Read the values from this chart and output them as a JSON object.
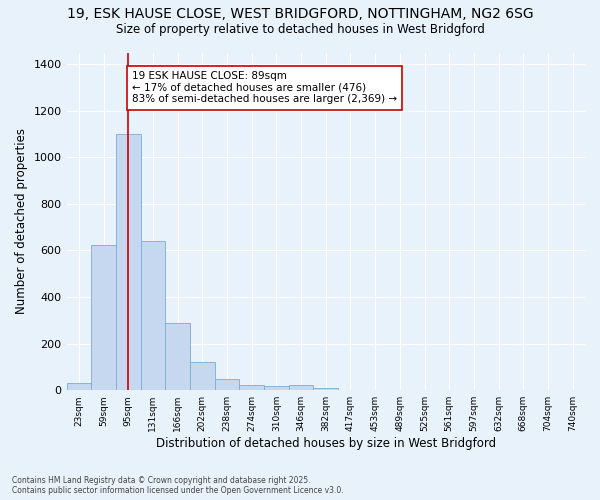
{
  "title_line1": "19, ESK HAUSE CLOSE, WEST BRIDGFORD, NOTTINGHAM, NG2 6SG",
  "title_line2": "Size of property relative to detached houses in West Bridgford",
  "xlabel": "Distribution of detached houses by size in West Bridgford",
  "ylabel": "Number of detached properties",
  "bar_color": "#c5d8ef",
  "bar_edge_color": "#7aadd4",
  "background_color": "#e8f2fb",
  "grid_color": "#ffffff",
  "categories": [
    "23sqm",
    "59sqm",
    "95sqm",
    "131sqm",
    "166sqm",
    "202sqm",
    "238sqm",
    "274sqm",
    "310sqm",
    "346sqm",
    "382sqm",
    "417sqm",
    "453sqm",
    "489sqm",
    "525sqm",
    "561sqm",
    "597sqm",
    "632sqm",
    "668sqm",
    "704sqm",
    "740sqm"
  ],
  "values": [
    30,
    625,
    1100,
    640,
    290,
    120,
    50,
    22,
    18,
    22,
    10,
    0,
    0,
    0,
    0,
    0,
    0,
    0,
    0,
    0,
    0
  ],
  "ylim": [
    0,
    1450
  ],
  "yticks": [
    0,
    200,
    400,
    600,
    800,
    1000,
    1200,
    1400
  ],
  "annotation_text": "19 ESK HAUSE CLOSE: 89sqm\n← 17% of detached houses are smaller (476)\n83% of semi-detached houses are larger (2,369) →",
  "annotation_box_color": "#ffffff",
  "annotation_border_color": "#cc0000",
  "vline_color": "#cc0000",
  "vline_x": 2.0,
  "footer_line1": "Contains HM Land Registry data © Crown copyright and database right 2025.",
  "footer_line2": "Contains public sector information licensed under the Open Government Licence v3.0."
}
